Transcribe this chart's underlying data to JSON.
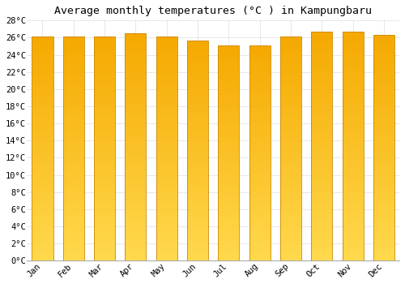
{
  "title": "Average monthly temperatures (°C ) in Kampungbaru",
  "months": [
    "Jan",
    "Feb",
    "Mar",
    "Apr",
    "May",
    "Jun",
    "Jul",
    "Aug",
    "Sep",
    "Oct",
    "Nov",
    "Dec"
  ],
  "values": [
    26.1,
    26.1,
    26.1,
    26.5,
    26.1,
    25.7,
    25.1,
    25.1,
    26.1,
    26.7,
    26.7,
    26.3
  ],
  "bar_color_top": "#F5A800",
  "bar_color_bottom": "#FFD84D",
  "ylim": [
    0,
    28
  ],
  "yticks": [
    0,
    2,
    4,
    6,
    8,
    10,
    12,
    14,
    16,
    18,
    20,
    22,
    24,
    26,
    28
  ],
  "ytick_labels": [
    "0°C",
    "2°C",
    "4°C",
    "6°C",
    "8°C",
    "10°C",
    "12°C",
    "14°C",
    "16°C",
    "18°C",
    "20°C",
    "22°C",
    "24°C",
    "26°C",
    "28°C"
  ],
  "background_color": "#FFFFFF",
  "grid_color": "#DDDDDD",
  "title_fontsize": 9.5,
  "tick_fontsize": 7.5,
  "bar_edge_color": "#CC8800",
  "bar_width": 0.68
}
